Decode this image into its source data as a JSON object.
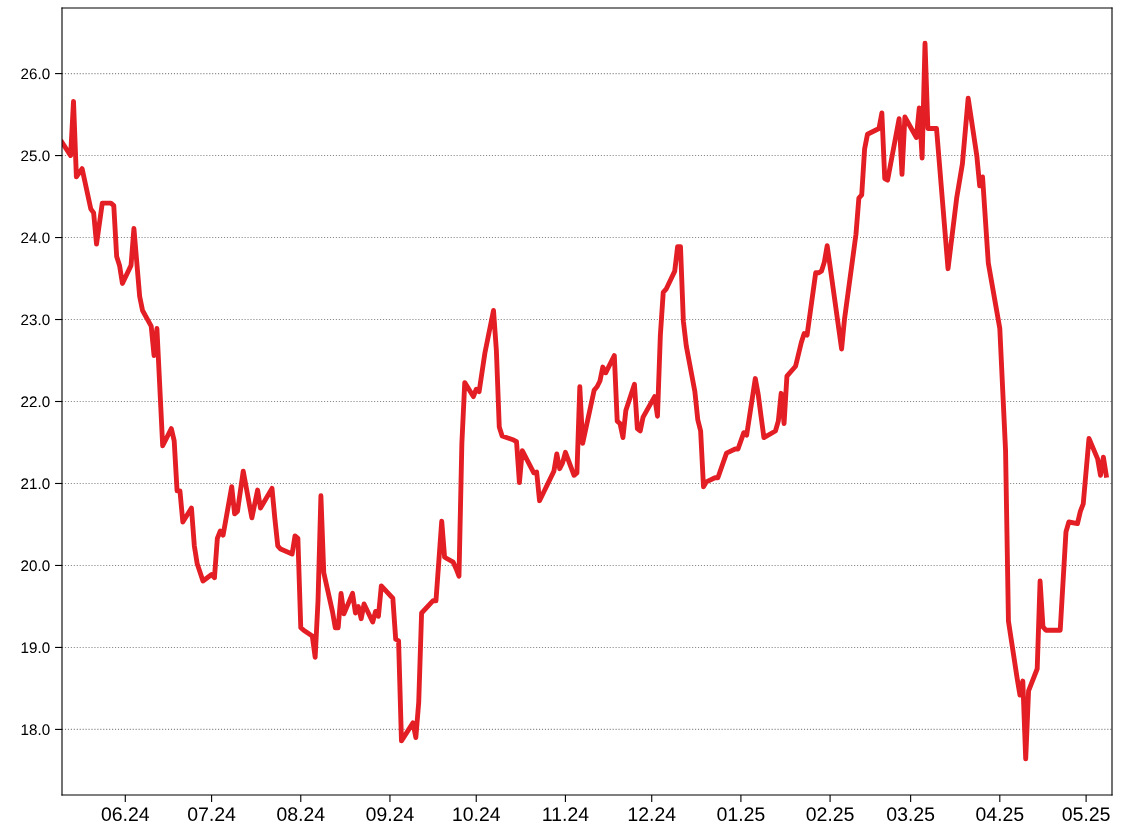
{
  "chart_data": {
    "type": "line",
    "x": [
      "2024-05-10",
      "2024-05-13",
      "2024-05-14",
      "2024-05-15",
      "2024-05-17",
      "2024-05-20",
      "2024-05-21",
      "2024-05-22",
      "2024-05-24",
      "2024-05-27",
      "2024-05-28",
      "2024-05-29",
      "2024-05-30",
      "2024-05-31",
      "2024-06-03",
      "2024-06-04",
      "2024-06-06",
      "2024-06-07",
      "2024-06-10",
      "2024-06-11",
      "2024-06-12",
      "2024-06-14",
      "2024-06-17",
      "2024-06-18",
      "2024-06-19",
      "2024-06-20",
      "2024-06-21",
      "2024-06-24",
      "2024-06-25",
      "2024-06-26",
      "2024-06-28",
      "2024-07-01",
      "2024-07-02",
      "2024-07-03",
      "2024-07-04",
      "2024-07-05",
      "2024-07-08",
      "2024-07-09",
      "2024-07-10",
      "2024-07-12",
      "2024-07-15",
      "2024-07-17",
      "2024-07-18",
      "2024-07-22",
      "2024-07-23",
      "2024-07-24",
      "2024-07-25",
      "2024-07-29",
      "2024-07-30",
      "2024-07-31",
      "2024-08-01",
      "2024-08-02",
      "2024-08-05",
      "2024-08-06",
      "2024-08-07",
      "2024-08-08",
      "2024-08-09",
      "2024-08-12",
      "2024-08-13",
      "2024-08-14",
      "2024-08-15",
      "2024-08-16",
      "2024-08-19",
      "2024-08-20",
      "2024-08-21",
      "2024-08-22",
      "2024-08-23",
      "2024-08-26",
      "2024-08-27",
      "2024-08-28",
      "2024-08-29",
      "2024-09-02",
      "2024-09-03",
      "2024-09-04",
      "2024-09-05",
      "2024-09-09",
      "2024-09-10",
      "2024-09-11",
      "2024-09-12",
      "2024-09-16",
      "2024-09-17",
      "2024-09-19",
      "2024-09-20",
      "2024-09-23",
      "2024-09-24",
      "2024-09-25",
      "2024-09-26",
      "2024-09-27",
      "2024-09-30",
      "2024-10-01",
      "2024-10-02",
      "2024-10-04",
      "2024-10-07",
      "2024-10-08",
      "2024-10-09",
      "2024-10-10",
      "2024-10-14",
      "2024-10-15",
      "2024-10-16",
      "2024-10-17",
      "2024-10-21",
      "2024-10-22",
      "2024-10-23",
      "2024-10-28",
      "2024-10-29",
      "2024-10-30",
      "2024-10-31",
      "2024-11-01",
      "2024-11-04",
      "2024-11-05",
      "2024-11-06",
      "2024-11-07",
      "2024-11-11",
      "2024-11-12",
      "2024-11-13",
      "2024-11-14",
      "2024-11-15",
      "2024-11-18",
      "2024-11-19",
      "2024-11-20",
      "2024-11-21",
      "2024-11-22",
      "2024-11-25",
      "2024-11-26",
      "2024-11-27",
      "2024-11-28",
      "2024-12-02",
      "2024-12-03",
      "2024-12-04",
      "2024-12-05",
      "2024-12-06",
      "2024-12-09",
      "2024-12-10",
      "2024-12-11",
      "2024-12-12",
      "2024-12-13",
      "2024-12-16",
      "2024-12-17",
      "2024-12-18",
      "2024-12-19",
      "2024-12-20",
      "2024-12-23",
      "2024-12-24",
      "2024-12-27",
      "2024-12-30",
      "2024-12-31",
      "2025-01-02",
      "2025-01-03",
      "2025-01-06",
      "2025-01-07",
      "2025-01-08",
      "2025-01-09",
      "2025-01-13",
      "2025-01-14",
      "2025-01-15",
      "2025-01-16",
      "2025-01-17",
      "2025-01-20",
      "2025-01-22",
      "2025-01-23",
      "2025-01-24",
      "2025-01-27",
      "2025-01-28",
      "2025-01-29",
      "2025-01-30",
      "2025-01-31",
      "2025-02-05",
      "2025-02-06",
      "2025-02-10",
      "2025-02-11",
      "2025-02-12",
      "2025-02-13",
      "2025-02-14",
      "2025-02-18",
      "2025-02-19",
      "2025-02-20",
      "2025-02-21",
      "2025-02-25",
      "2025-02-26",
      "2025-02-27",
      "2025-03-03",
      "2025-03-04",
      "2025-03-05",
      "2025-03-06",
      "2025-03-07",
      "2025-03-10",
      "2025-03-14",
      "2025-03-17",
      "2025-03-19",
      "2025-03-21",
      "2025-03-24",
      "2025-03-25",
      "2025-03-26",
      "2025-03-28",
      "2025-04-01",
      "2025-04-03",
      "2025-04-04",
      "2025-04-07",
      "2025-04-08",
      "2025-04-09",
      "2025-04-10",
      "2025-04-11",
      "2025-04-14",
      "2025-04-15",
      "2025-04-16",
      "2025-04-17",
      "2025-04-22",
      "2025-04-24",
      "2025-04-25",
      "2025-04-28",
      "2025-04-29",
      "2025-04-30",
      "2025-05-02",
      "2025-05-05",
      "2025-05-06",
      "2025-05-07",
      "2025-05-08"
    ],
    "series": [
      {
        "color": "#e31e24",
        "values": [
          25.16,
          25.0,
          25.66,
          24.74,
          24.84,
          24.35,
          24.3,
          23.92,
          24.42,
          24.42,
          24.39,
          23.77,
          23.66,
          23.44,
          23.66,
          24.11,
          23.28,
          23.11,
          22.92,
          22.56,
          22.89,
          21.46,
          21.67,
          21.52,
          20.91,
          20.91,
          20.53,
          20.7,
          20.24,
          20.02,
          19.81,
          19.89,
          19.85,
          20.33,
          20.42,
          20.37,
          20.96,
          20.63,
          20.66,
          21.15,
          20.58,
          20.92,
          20.7,
          20.94,
          20.57,
          20.24,
          20.2,
          20.14,
          20.36,
          20.33,
          19.24,
          19.21,
          19.14,
          18.88,
          19.57,
          20.85,
          19.91,
          19.44,
          19.24,
          19.24,
          19.66,
          19.41,
          19.66,
          19.42,
          19.5,
          19.35,
          19.53,
          19.31,
          19.44,
          19.38,
          19.75,
          19.6,
          19.1,
          19.08,
          17.86,
          18.08,
          17.9,
          18.33,
          19.42,
          19.57,
          19.57,
          20.54,
          20.1,
          20.04,
          19.96,
          19.87,
          21.49,
          22.23,
          22.06,
          22.15,
          22.12,
          22.59,
          23.11,
          22.62,
          21.69,
          21.58,
          21.53,
          21.51,
          21.01,
          21.4,
          21.13,
          21.14,
          20.79,
          21.15,
          21.36,
          21.18,
          21.25,
          21.38,
          21.1,
          21.13,
          22.18,
          21.49,
          22.14,
          22.18,
          22.25,
          22.42,
          22.35,
          22.56,
          21.76,
          21.73,
          21.56,
          21.89,
          22.21,
          21.67,
          21.64,
          21.81,
          22.06,
          21.82,
          22.81,
          23.33,
          23.37,
          23.59,
          23.89,
          23.89,
          22.98,
          22.68,
          22.12,
          21.78,
          21.64,
          20.96,
          21.02,
          21.07,
          21.07,
          21.37,
          21.42,
          21.42,
          21.62,
          21.59,
          22.28,
          22.09,
          21.82,
          21.56,
          21.64,
          21.76,
          22.1,
          21.73,
          22.31,
          22.43,
          22.72,
          22.83,
          22.81,
          23.57,
          23.57,
          23.59,
          23.7,
          23.9,
          22.64,
          23.0,
          24.04,
          24.48,
          24.52,
          25.08,
          25.26,
          25.33,
          25.52,
          24.72,
          24.7,
          25.45,
          24.77,
          25.47,
          25.22,
          25.58,
          24.97,
          26.37,
          25.33,
          25.33,
          23.62,
          24.48,
          24.9,
          25.7,
          25.0,
          24.63,
          24.74,
          23.69,
          22.89,
          21.4,
          19.32,
          18.63,
          18.42,
          18.59,
          17.64,
          18.47,
          18.74,
          19.81,
          19.25,
          19.21,
          19.21,
          20.41,
          20.53,
          20.51,
          20.66,
          20.75,
          21.55,
          21.3,
          21.1,
          21.32,
          21.1
        ]
      }
    ],
    "xlim": [
      "2024-05-10",
      "2025-05-10"
    ],
    "ylim": [
      17.2,
      26.8
    ],
    "xticks": [
      {
        "value": "2024-06-01",
        "label": "06.24"
      },
      {
        "value": "2024-07-01",
        "label": "07.24"
      },
      {
        "value": "2024-08-01",
        "label": "08.24"
      },
      {
        "value": "2024-09-01",
        "label": "09.24"
      },
      {
        "value": "2024-10-01",
        "label": "10.24"
      },
      {
        "value": "2024-11-01",
        "label": "11.24"
      },
      {
        "value": "2024-12-01",
        "label": "12.24"
      },
      {
        "value": "2025-01-01",
        "label": "01.25"
      },
      {
        "value": "2025-02-01",
        "label": "02.25"
      },
      {
        "value": "2025-03-01",
        "label": "03.25"
      },
      {
        "value": "2025-04-01",
        "label": "04.25"
      },
      {
        "value": "2025-05-01",
        "label": "05.25"
      }
    ],
    "yticks": [
      {
        "value": 18,
        "label": "18.0"
      },
      {
        "value": 19,
        "label": "19.0"
      },
      {
        "value": 20,
        "label": "20.0"
      },
      {
        "value": 21,
        "label": "21.0"
      },
      {
        "value": 22,
        "label": "22.0"
      },
      {
        "value": 23,
        "label": "23.0"
      },
      {
        "value": 24,
        "label": "24.0"
      },
      {
        "value": 25,
        "label": "25.0"
      },
      {
        "value": 26,
        "label": "26.0"
      }
    ],
    "grid": "y",
    "line_style": "solid"
  }
}
